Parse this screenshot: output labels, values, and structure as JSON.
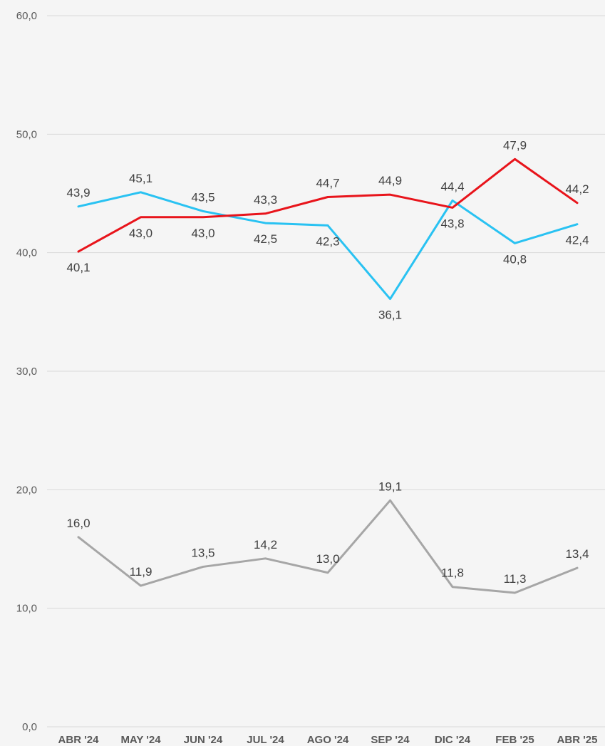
{
  "chart_data": {
    "type": "line",
    "title": "",
    "xlabel": "",
    "ylabel": "",
    "ylim": [
      0,
      60
    ],
    "y_ticks": [
      "0,0",
      "10,0",
      "20,0",
      "30,0",
      "40,0",
      "50,0",
      "60,0"
    ],
    "y_tick_values": [
      0,
      10,
      20,
      30,
      40,
      50,
      60
    ],
    "grid": true,
    "legend": "none",
    "categories": [
      "ABR '24",
      "MAY '24",
      "JUN '24",
      "JUL '24",
      "AGO '24",
      "SEP '24",
      "DIC '24",
      "FEB '25",
      "ABR '25"
    ],
    "series": [
      {
        "color": "#29c2f2",
        "values": [
          43.9,
          45.1,
          43.5,
          42.5,
          42.3,
          36.1,
          44.4,
          40.8,
          42.4
        ],
        "labels": [
          "43,9",
          "45,1",
          "43,5",
          "42,5",
          "42,3",
          "36,1",
          "44,4",
          "40,8",
          "42,4"
        ]
      },
      {
        "color": "#e8141b",
        "values": [
          40.1,
          43.0,
          43.0,
          43.3,
          44.7,
          44.9,
          43.8,
          47.9,
          44.2
        ],
        "labels": [
          "40,1",
          "43,0",
          "43,0",
          "43,3",
          "44,7",
          "44,9",
          "43,8",
          "47,9",
          "44,2"
        ]
      },
      {
        "color": "#a6a6a6",
        "values": [
          16.0,
          11.9,
          13.5,
          14.2,
          13.0,
          19.1,
          11.8,
          11.3,
          13.4
        ],
        "labels": [
          "16,0",
          "11,9",
          "13,5",
          "14,2",
          "13,0",
          "19,1",
          "11,8",
          "11,3",
          "13,4"
        ]
      }
    ]
  }
}
